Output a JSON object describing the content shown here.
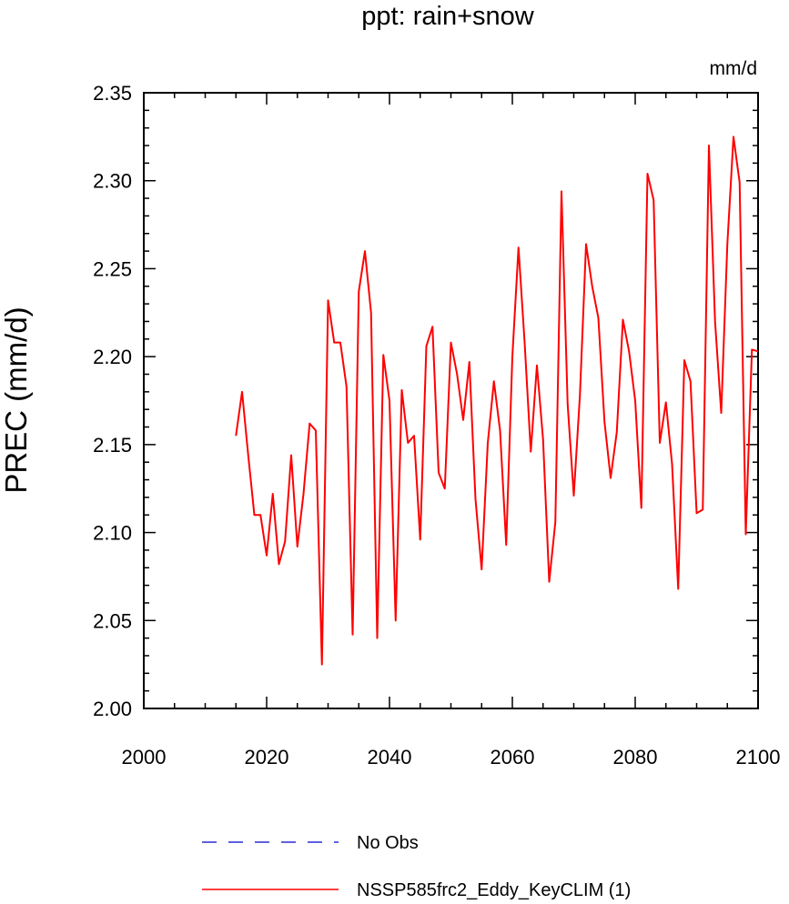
{
  "chart_data": {
    "type": "line",
    "title": "ppt: rain+snow",
    "units": "mm/d",
    "ylabel": "PREC  (mm/d)",
    "xlabel": "",
    "xlim": [
      2000,
      2100
    ],
    "ylim": [
      2.0,
      2.35
    ],
    "x_major_ticks": [
      2000,
      2020,
      2040,
      2060,
      2080,
      2100
    ],
    "x_tick_labels": [
      "2000",
      "2020",
      "2040",
      "2060",
      "2080",
      "2100"
    ],
    "y_major_ticks": [
      2.0,
      2.05,
      2.1,
      2.15,
      2.2,
      2.25,
      2.3,
      2.35
    ],
    "y_tick_labels": [
      "2.00",
      "2.05",
      "2.10",
      "2.15",
      "2.20",
      "2.25",
      "2.30",
      "2.35"
    ],
    "grid": false,
    "legend_position": "bottom-center",
    "legend": [
      {
        "label": "No Obs",
        "color": "#0000cc",
        "style": "dashed"
      },
      {
        "label": "NSSP585frc2_Eddy_KeyCLIM (1)",
        "color": "#ff0000",
        "style": "solid"
      }
    ],
    "series": [
      {
        "name": "NSSP585frc2_Eddy_KeyCLIM (1)",
        "color": "#ff0000",
        "x": [
          2015,
          2016,
          2017,
          2018,
          2019,
          2020,
          2021,
          2022,
          2023,
          2024,
          2025,
          2026,
          2027,
          2028,
          2029,
          2030,
          2031,
          2032,
          2033,
          2034,
          2035,
          2036,
          2037,
          2038,
          2039,
          2040,
          2041,
          2042,
          2043,
          2044,
          2045,
          2046,
          2047,
          2048,
          2049,
          2050,
          2051,
          2052,
          2053,
          2054,
          2055,
          2056,
          2057,
          2058,
          2059,
          2060,
          2061,
          2062,
          2063,
          2064,
          2065,
          2066,
          2067,
          2068,
          2069,
          2070,
          2071,
          2072,
          2073,
          2074,
          2075,
          2076,
          2077,
          2078,
          2079,
          2080,
          2081,
          2082,
          2083,
          2084,
          2085,
          2086,
          2087,
          2088,
          2089,
          2090,
          2091,
          2092,
          2093,
          2094,
          2095,
          2096,
          2097,
          2098,
          2099,
          2100
        ],
        "y": [
          2.155,
          2.18,
          2.144,
          2.11,
          2.11,
          2.087,
          2.122,
          2.082,
          2.095,
          2.144,
          2.092,
          2.122,
          2.162,
          2.158,
          2.025,
          2.232,
          2.208,
          2.208,
          2.183,
          2.042,
          2.237,
          2.26,
          2.225,
          2.04,
          2.201,
          2.175,
          2.05,
          2.181,
          2.151,
          2.155,
          2.096,
          2.206,
          2.217,
          2.134,
          2.125,
          2.208,
          2.19,
          2.164,
          2.197,
          2.119,
          2.079,
          2.151,
          2.186,
          2.158,
          2.093,
          2.2,
          2.262,
          2.208,
          2.146,
          2.195,
          2.153,
          2.072,
          2.106,
          2.294,
          2.173,
          2.121,
          2.178,
          2.264,
          2.24,
          2.222,
          2.163,
          2.131,
          2.157,
          2.221,
          2.203,
          2.175,
          2.114,
          2.304,
          2.289,
          2.151,
          2.174,
          2.139,
          2.068,
          2.198,
          2.186,
          2.111,
          2.113,
          2.32,
          2.22,
          2.168,
          2.264,
          2.325,
          2.299,
          2.099,
          2.204,
          2.203
        ]
      }
    ]
  }
}
